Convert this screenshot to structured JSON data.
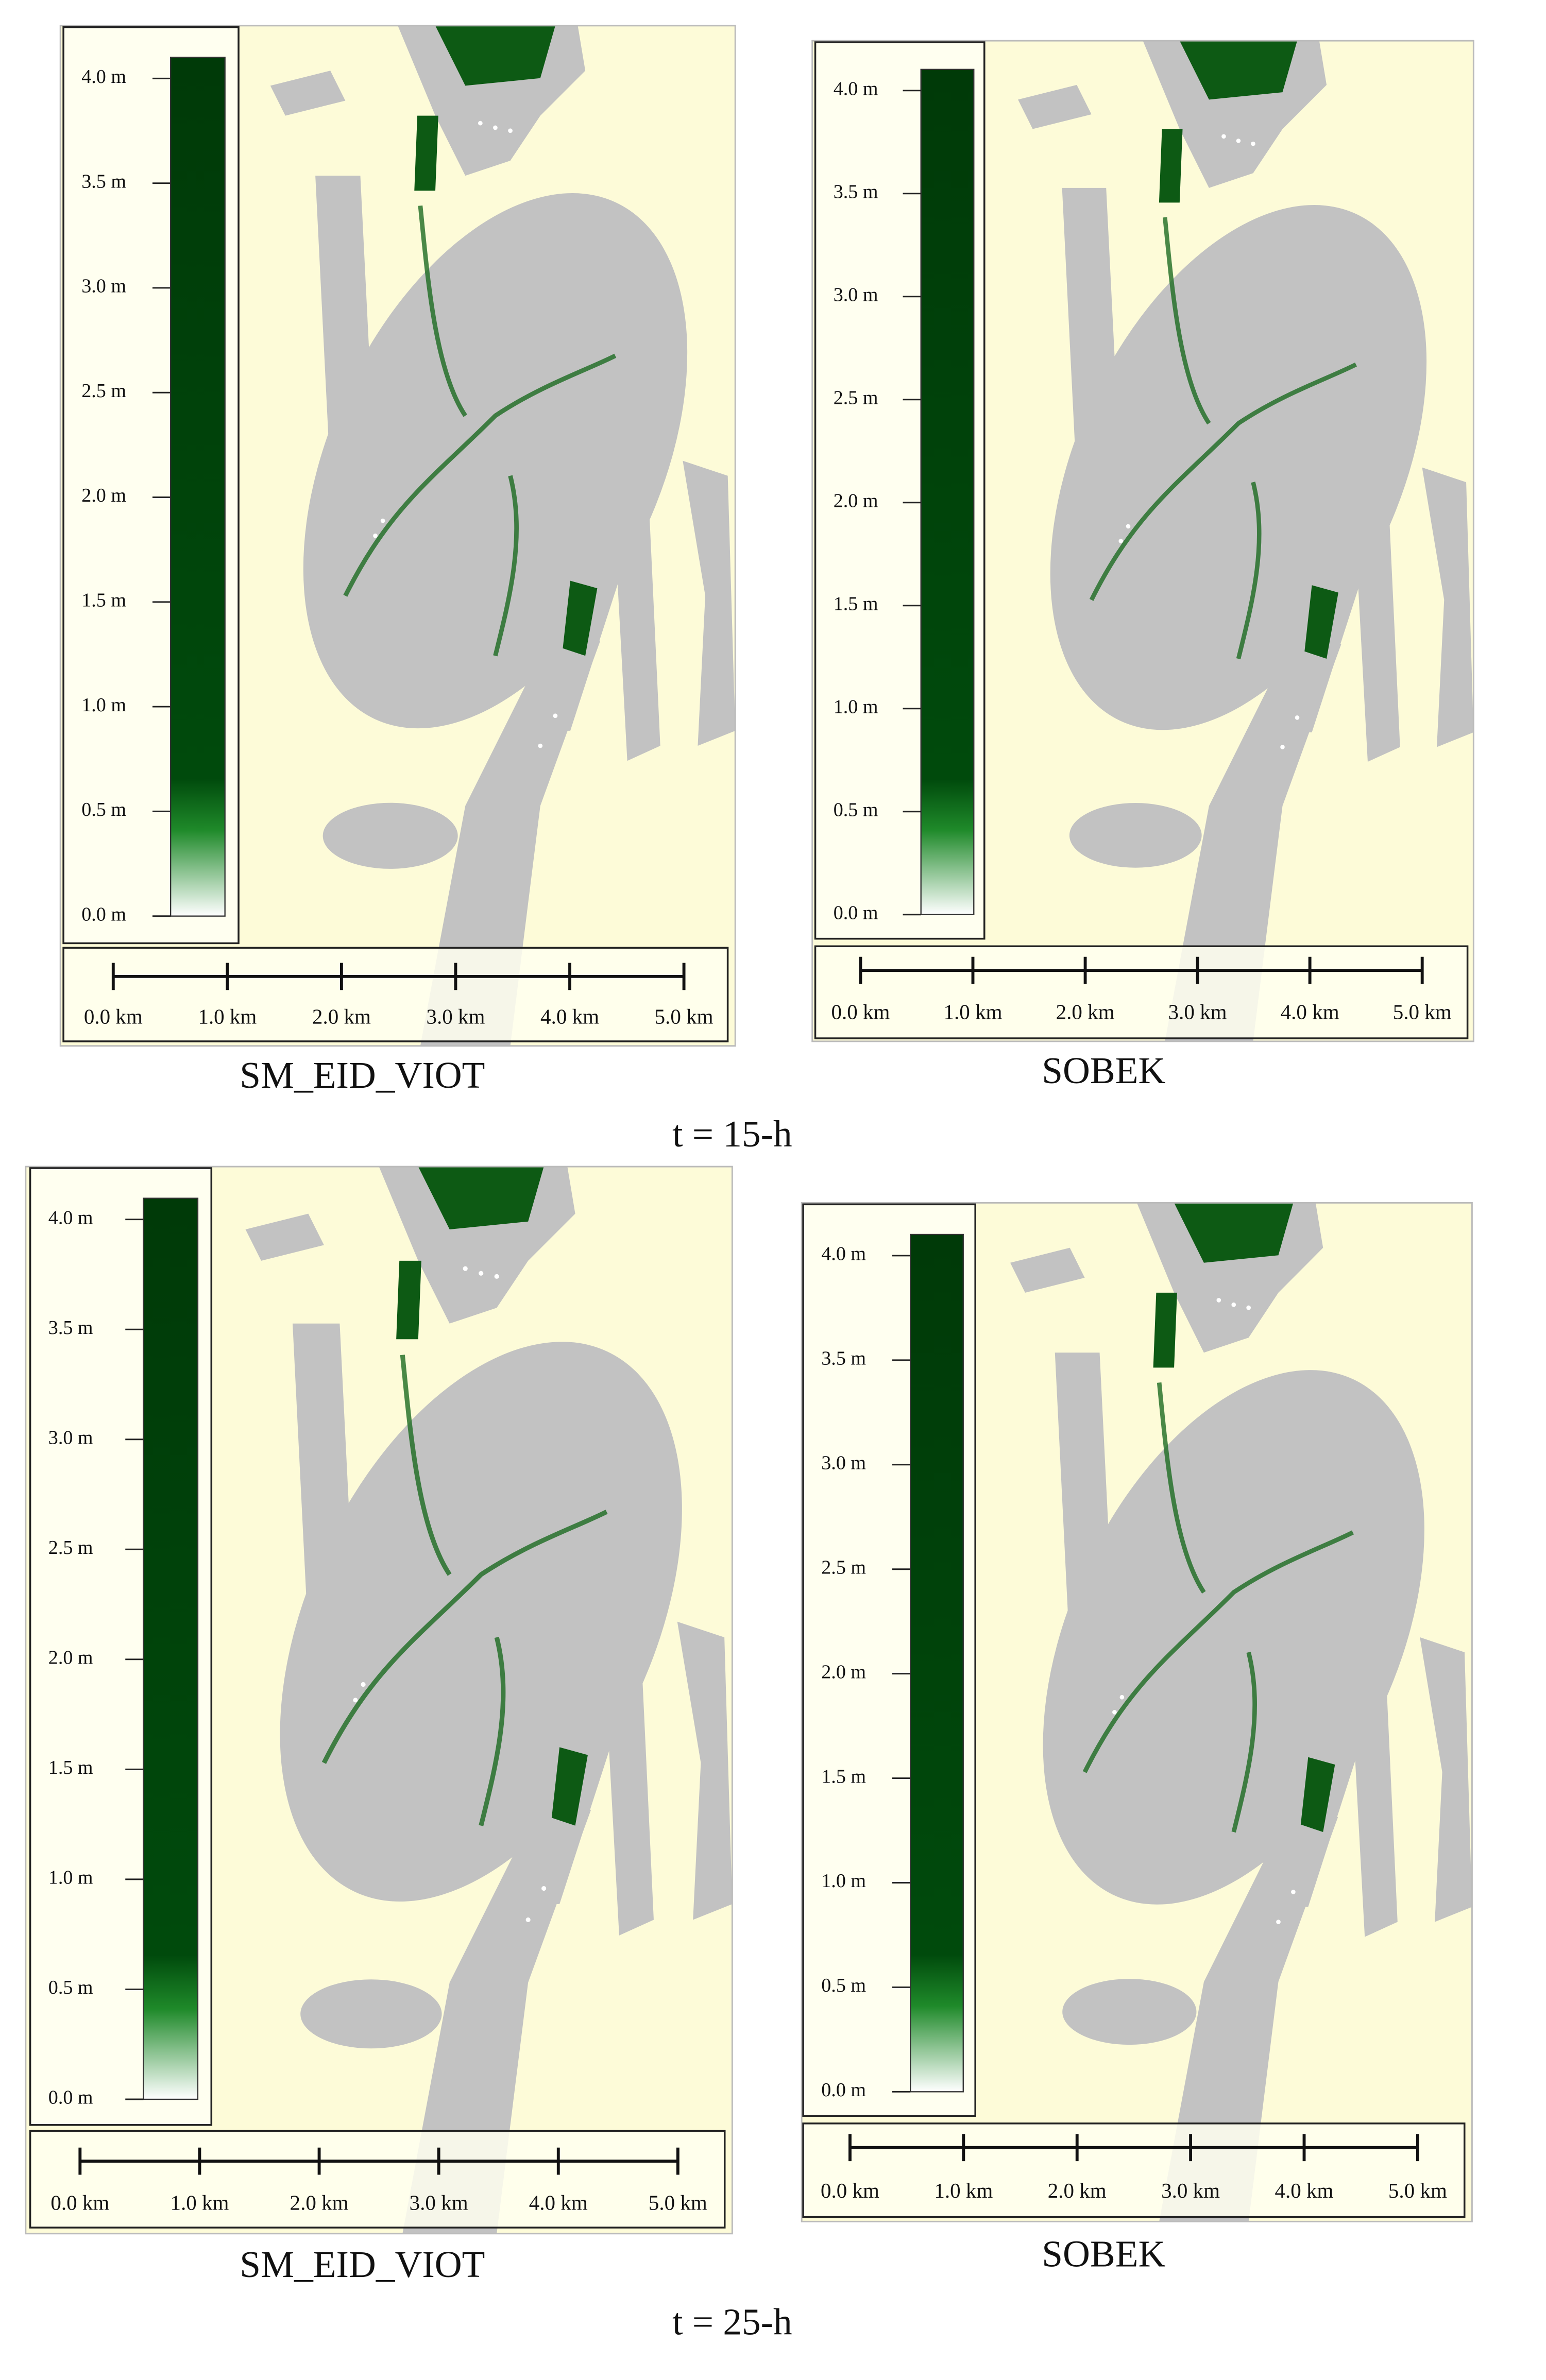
{
  "panels": [
    {
      "legend_ticks": [
        "4.0 m",
        "3.5 m",
        "3.0 m",
        "2.5 m",
        "2.0 m",
        "1.5 m",
        "1.0 m",
        "0.5 m",
        "0.0 m"
      ],
      "scale_ticks": [
        "0.0 km",
        "1.0 km",
        "2.0 km",
        "3.0 km",
        "4.0 km",
        "5.0 km"
      ],
      "caption": "SM_EID_VIOT"
    },
    {
      "legend_ticks": [
        "4.0 m",
        "3.5 m",
        "3.0 m",
        "2.5 m",
        "2.0 m",
        "1.5 m",
        "1.0 m",
        "0.5 m",
        "0.0 m"
      ],
      "scale_ticks": [
        "0.0 km",
        "1.0 km",
        "2.0 km",
        "3.0 km",
        "4.0 km",
        "5.0 km"
      ],
      "caption": "SOBEK"
    },
    {
      "legend_ticks": [
        "4.0 m",
        "3.5 m",
        "3.0 m",
        "2.5 m",
        "2.0 m",
        "1.5 m",
        "1.0 m",
        "0.5 m",
        "0.0 m"
      ],
      "scale_ticks": [
        "0.0 km",
        "1.0 km",
        "2.0 km",
        "3.0 km",
        "4.0 km",
        "5.0 km"
      ],
      "caption": "SM_EID_VIOT"
    },
    {
      "legend_ticks": [
        "4.0 m",
        "3.5 m",
        "3.0 m",
        "2.5 m",
        "2.0 m",
        "1.5 m",
        "1.0 m",
        "0.5 m",
        "0.0 m"
      ],
      "scale_ticks": [
        "0.0 km",
        "1.0 km",
        "2.0 km",
        "3.0 km",
        "4.0 km",
        "5.0 km"
      ],
      "caption": "SOBEK"
    }
  ],
  "time_labels": [
    "t = 15-h",
    "t = 25-h"
  ]
}
